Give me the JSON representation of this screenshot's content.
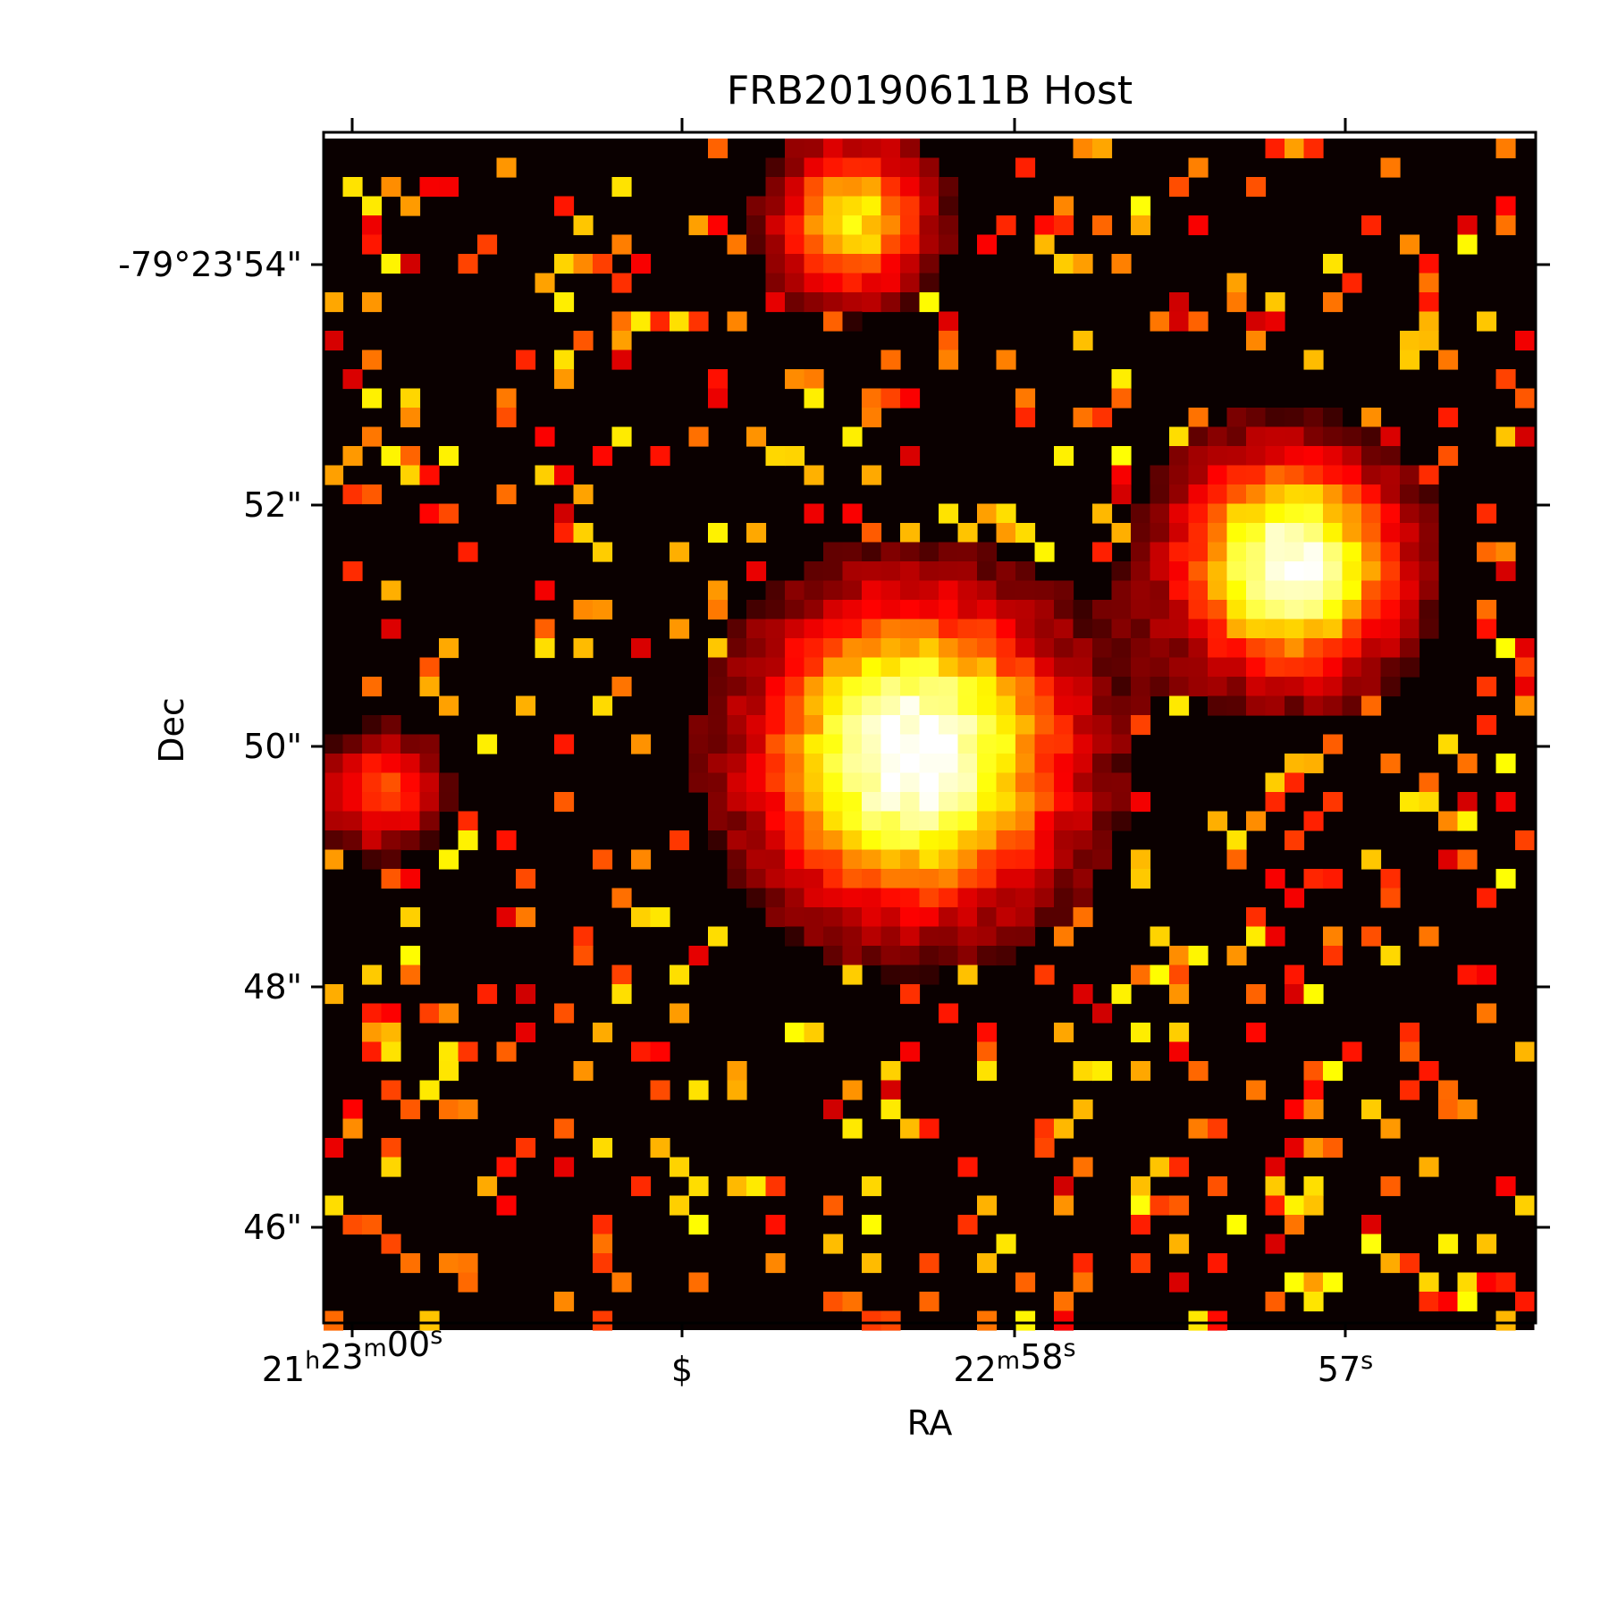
{
  "chart_data": {
    "type": "heatmap",
    "title": "FRB20190611B Host",
    "xlabel": "RA",
    "ylabel": "Dec",
    "colormap": "hot",
    "colors": {
      "background": "#0a0000",
      "dark_red": "#a80000",
      "red": "#ff1a00",
      "orange_red": "#ff4a00",
      "orange": "#ff9a00",
      "yellow": "#ffff20",
      "white": "#ffffff"
    },
    "x_ticks": [
      {
        "label_base": "21",
        "label_parts": [
          [
            "21",
            "h"
          ],
          [
            "23",
            "m"
          ],
          [
            "00",
            "s"
          ]
        ]
      },
      {
        "label_parts": [
          [
            "$",
            ""
          ]
        ]
      },
      {
        "label_parts": [
          [
            "22",
            "m"
          ],
          [
            "58",
            "s"
          ]
        ]
      },
      {
        "label_parts": [
          [
            "57",
            "s"
          ]
        ]
      }
    ],
    "y_ticks": [
      {
        "label": "-79°23'54\""
      },
      {
        "label": "52\""
      },
      {
        "label": "50\""
      },
      {
        "label": "48\""
      },
      {
        "label": "46\""
      }
    ],
    "sources": [
      {
        "name": "",
        "ra_frac": 0.48,
        "dec_frac": 0.51,
        "peak": 1.0,
        "radius": 5.5
      },
      {
        "name": "",
        "ra_frac": 0.79,
        "dec_frac": 0.35,
        "peak": 0.95,
        "radius": 4.0
      },
      {
        "name": "",
        "ra_frac": 0.43,
        "dec_frac": 0.06,
        "peak": 0.7,
        "radius": 2.8
      },
      {
        "name": "",
        "ra_frac": 0.04,
        "dec_frac": 0.54,
        "peak": 0.45,
        "radius": 2.2
      }
    ],
    "grid": false
  }
}
